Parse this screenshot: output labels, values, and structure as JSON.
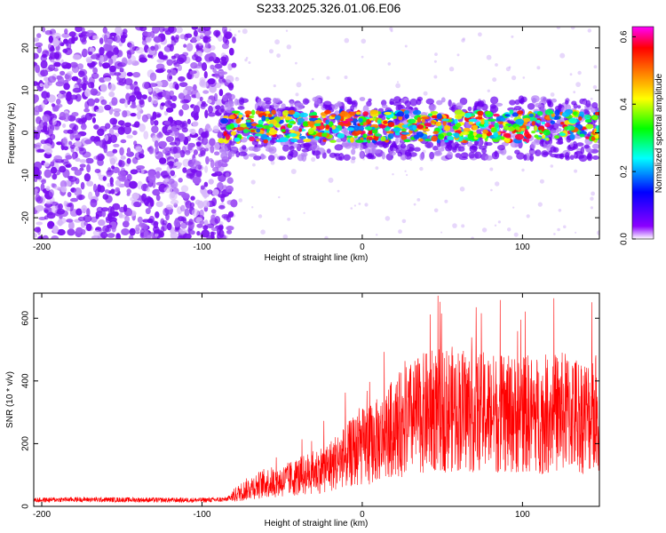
{
  "figure": {
    "title": "S233.2025.326.01.06.E06"
  },
  "chart_data": [
    {
      "type": "heatmap",
      "title": "S233.2025.326.01.06.E06",
      "xlabel": "Height of straight line (km)",
      "ylabel": "Frequency (Hz)",
      "xlim": [
        -205,
        148
      ],
      "ylim": [
        -25,
        25
      ],
      "xticks": [
        -200,
        -100,
        0,
        100
      ],
      "yticks": [
        -20,
        -10,
        0,
        10,
        20
      ],
      "colorbar": {
        "label": "Normalized spectral amplitude",
        "range": [
          0.0,
          0.63
        ],
        "ticks": [
          "0.0",
          "0.2",
          "0.4",
          "0.6"
        ],
        "tick_values": [
          0.0,
          0.2,
          0.4,
          0.6
        ],
        "colors": [
          "#ffffff",
          "#8b00ff",
          "#0000ff",
          "#00ffff",
          "#00ff00",
          "#ffff00",
          "#ff8000",
          "#ff0000",
          "#ff00ff"
        ]
      },
      "description_regions": [
        {
          "x_range": [
            -205,
            -88
          ],
          "frequency_range": [
            -25,
            25
          ],
          "pattern": "broadband purple noise",
          "amplitude": 0.05
        },
        {
          "x_range": [
            -88,
            148
          ],
          "frequency_range": [
            -5,
            7
          ],
          "pattern": "narrow band centered near 1 Hz",
          "amplitude_peak": 0.6
        }
      ]
    },
    {
      "type": "line",
      "xlabel": "Height of straight line (km)",
      "ylabel": "SNR (10 * v/v)",
      "xlim": [
        -205,
        148
      ],
      "ylim": [
        0,
        680
      ],
      "xticks": [
        -200,
        -100,
        0,
        100
      ],
      "yticks": [
        0,
        200,
        400,
        600
      ],
      "series": [
        {
          "name": "SNR",
          "color": "#ff0000",
          "x": [
            -205,
            -180,
            -150,
            -120,
            -100,
            -85,
            -80,
            -70,
            -60,
            -50,
            -40,
            -30,
            -20,
            -10,
            0,
            10,
            20,
            30,
            40,
            50,
            60,
            70,
            80,
            90,
            100,
            110,
            120,
            130,
            140,
            148
          ],
          "y": [
            20,
            22,
            21,
            20,
            20,
            22,
            35,
            60,
            75,
            80,
            95,
            110,
            130,
            160,
            190,
            210,
            250,
            280,
            300,
            310,
            310,
            300,
            300,
            290,
            300,
            290,
            300,
            300,
            290,
            300
          ],
          "peak_values": [
            240,
            600,
            620,
            560,
            660,
            560,
            600
          ]
        }
      ]
    }
  ]
}
